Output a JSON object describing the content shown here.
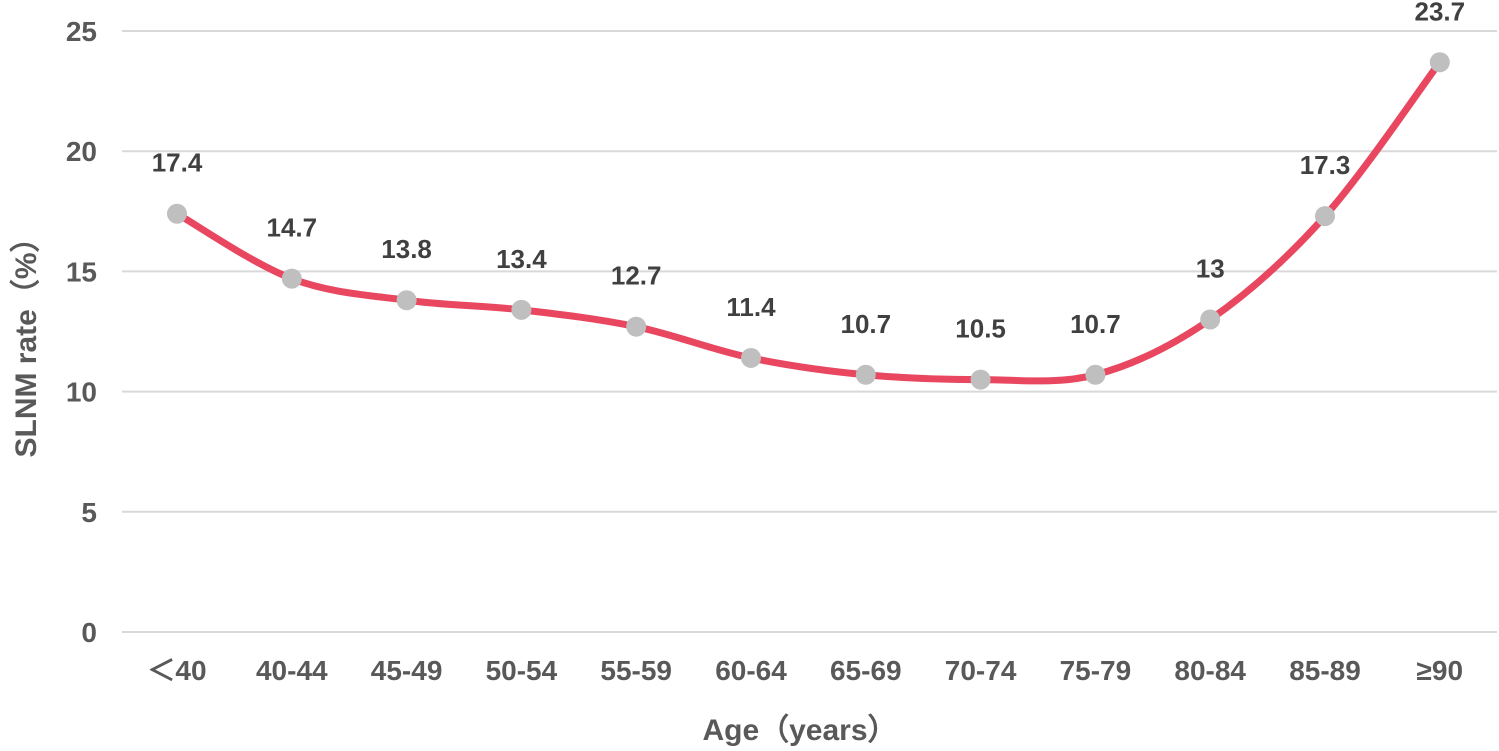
{
  "chart_data": {
    "type": "line",
    "categories": [
      "＜40",
      "40-44",
      "45-49",
      "50-54",
      "55-59",
      "60-64",
      "65-69",
      "70-74",
      "75-79",
      "80-84",
      "85-89",
      "≥90"
    ],
    "series": [
      {
        "values": [
          17.4,
          14.7,
          13.8,
          13.4,
          12.7,
          11.4,
          10.7,
          10.5,
          10.7,
          13,
          17.3,
          23.7
        ],
        "labels": [
          "17.4",
          "14.7",
          "13.8",
          "13.4",
          "12.7",
          "11.4",
          "10.7",
          "10.5",
          "10.7",
          "13",
          "17.3",
          "23.7"
        ]
      }
    ],
    "xlabel": "Age（years）",
    "ylabel": "SLNM rate（%）",
    "ylim": [
      0,
      25
    ],
    "yticks": [
      "0",
      "5",
      "10",
      "15",
      "20",
      "25"
    ],
    "smooth": true,
    "grid": "horizontal",
    "legend": "none",
    "colors": {
      "line": "#e8475f",
      "marker": "#bfbfbf",
      "grid": "#d9d9d9",
      "text": "#595959"
    }
  }
}
